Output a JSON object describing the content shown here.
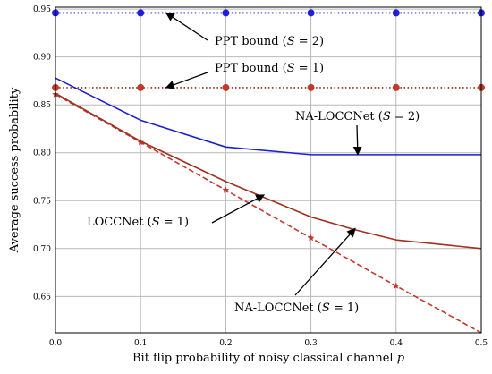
{
  "chart_data": {
    "type": "line",
    "xlabel": "Bit flip probability of noisy classical channel p",
    "ylabel": "Average success probability",
    "xlim": [
      0,
      0.5
    ],
    "ylim": [
      0.612,
      0.952
    ],
    "x_ticks": [
      0.0,
      0.1,
      0.2,
      0.3,
      0.4,
      0.5
    ],
    "x_tick_labels": [
      "0.0",
      "0.1",
      "0.2",
      "0.3",
      "0.4",
      "0.5"
    ],
    "y_ticks": [
      0.65,
      0.7,
      0.75,
      0.8,
      0.85,
      0.9,
      0.95
    ],
    "y_tick_labels": [
      "0.65",
      "0.70",
      "0.75",
      "0.80",
      "0.85",
      "0.90",
      "0.95"
    ],
    "grid": true,
    "series": [
      {
        "key": "ppt2",
        "label": "PPT bound (S = 2)",
        "color": "#1f1fd6",
        "style": "dotted",
        "marker": "circle",
        "points": [
          [
            0.0,
            0.946
          ],
          [
            0.1,
            0.946
          ],
          [
            0.2,
            0.946
          ],
          [
            0.3,
            0.946
          ],
          [
            0.4,
            0.946
          ],
          [
            0.5,
            0.946
          ]
        ],
        "markers": [
          [
            0.0,
            0.946
          ],
          [
            0.1,
            0.946
          ],
          [
            0.2,
            0.946
          ],
          [
            0.3,
            0.946
          ],
          [
            0.4,
            0.946
          ],
          [
            0.5,
            0.946
          ]
        ]
      },
      {
        "key": "ppt1",
        "label": "PPT bound (S = 1)",
        "color": "#a0422a",
        "marker_color": "#c0392b",
        "style": "dotted",
        "marker": "circle",
        "points": [
          [
            0.0,
            0.868
          ],
          [
            0.1,
            0.868
          ],
          [
            0.2,
            0.868
          ],
          [
            0.3,
            0.868
          ],
          [
            0.4,
            0.868
          ],
          [
            0.5,
            0.868
          ]
        ],
        "markers": [
          [
            0.0,
            0.868
          ],
          [
            0.1,
            0.868
          ],
          [
            0.2,
            0.868
          ],
          [
            0.3,
            0.868
          ],
          [
            0.4,
            0.868
          ],
          [
            0.5,
            0.868
          ]
        ]
      },
      {
        "key": "na2",
        "label": "NA-LOCCNet (S = 2)",
        "color": "#1f1fd6",
        "style": "solid",
        "marker": "none",
        "points": [
          [
            0.0,
            0.878
          ],
          [
            0.1,
            0.834
          ],
          [
            0.2,
            0.806
          ],
          [
            0.3,
            0.798
          ],
          [
            0.4,
            0.798
          ],
          [
            0.5,
            0.798
          ]
        ],
        "markers": []
      },
      {
        "key": "locc1",
        "label": "LOCCNet (S = 1)",
        "color": "#c0392b",
        "style": "dashed",
        "marker": "star",
        "points": [
          [
            0.0,
            0.861
          ],
          [
            0.1,
            0.811
          ],
          [
            0.2,
            0.761
          ],
          [
            0.3,
            0.711
          ],
          [
            0.4,
            0.661
          ],
          [
            0.5,
            0.612
          ]
        ],
        "markers": [
          [
            0.0,
            0.861
          ],
          [
            0.1,
            0.811
          ],
          [
            0.2,
            0.761
          ],
          [
            0.3,
            0.711
          ],
          [
            0.4,
            0.661
          ]
        ]
      },
      {
        "key": "na1",
        "label": "NA-LOCCNet (S = 1)",
        "color": "#a0301f",
        "style": "solid",
        "marker": "none",
        "points": [
          [
            0.0,
            0.862
          ],
          [
            0.1,
            0.812
          ],
          [
            0.2,
            0.77
          ],
          [
            0.3,
            0.733
          ],
          [
            0.35,
            0.72
          ],
          [
            0.4,
            0.709
          ],
          [
            0.5,
            0.7
          ]
        ],
        "markers": []
      }
    ],
    "annotations": [
      {
        "key": "ppt2",
        "prefix": "PPT bound (",
        "var": "S",
        "suffix": " = 2)",
        "target": [
          0.13,
          0.946
        ]
      },
      {
        "key": "ppt1",
        "prefix": "PPT bound (",
        "var": "S",
        "suffix": " = 1)",
        "target": [
          0.13,
          0.868
        ]
      },
      {
        "key": "na2",
        "prefix": "NA-LOCCNet (",
        "var": "S",
        "suffix": " = 2)",
        "target": [
          0.355,
          0.798
        ]
      },
      {
        "key": "locc1",
        "prefix": "LOCCNet (",
        "var": "S",
        "suffix": " = 1)",
        "target": [
          0.245,
          0.756
        ]
      },
      {
        "key": "na1",
        "prefix": "NA-LOCCNet (",
        "var": "S",
        "suffix": " = 1)",
        "target": [
          0.352,
          0.721
        ]
      }
    ]
  }
}
